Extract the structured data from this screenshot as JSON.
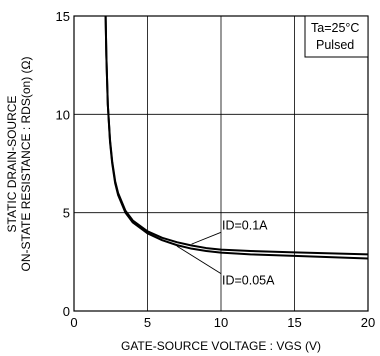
{
  "chart_data": {
    "type": "line",
    "title": "",
    "xlabel": "GATE-SOURCE  VOLTAGE : VGS (V)",
    "ylabel_line1": "STATIC  DRAIN-SOURCE",
    "ylabel_line2": "ON-STATE  RESISTANCE : RDS(on) (Ω)",
    "xlim": [
      0,
      20
    ],
    "ylim": [
      0,
      15
    ],
    "xticks": [
      0,
      5,
      10,
      15,
      20
    ],
    "yticks": [
      0,
      5,
      10,
      15
    ],
    "grid": true,
    "conditions": [
      "Ta=25°C",
      "Pulsed"
    ],
    "series": [
      {
        "name": "ID=0.1A",
        "x": [
          2.15,
          2.2,
          2.3,
          2.45,
          2.6,
          2.8,
          3.0,
          3.5,
          4.0,
          5.0,
          6.0,
          7.0,
          8.0,
          9.0,
          10.0,
          12.0,
          15.0,
          20.0
        ],
        "y": [
          15.0,
          13.0,
          10.5,
          8.7,
          7.6,
          6.6,
          6.0,
          5.1,
          4.6,
          4.05,
          3.72,
          3.5,
          3.33,
          3.2,
          3.12,
          3.05,
          2.98,
          2.88
        ]
      },
      {
        "name": "ID=0.05A",
        "x": [
          2.15,
          2.2,
          2.3,
          2.45,
          2.6,
          2.8,
          3.0,
          3.5,
          4.0,
          5.0,
          6.0,
          7.0,
          8.0,
          9.0,
          10.0,
          12.0,
          15.0,
          20.0
        ],
        "y": [
          15.0,
          13.0,
          10.5,
          8.6,
          7.5,
          6.5,
          5.9,
          5.0,
          4.5,
          3.95,
          3.6,
          3.35,
          3.17,
          3.05,
          2.97,
          2.88,
          2.8,
          2.67
        ]
      }
    ],
    "annotations": [
      {
        "text": "ID=0.1A",
        "x": 8.0,
        "y": 3.4,
        "label_x": 10.0,
        "label_y": 4.0
      },
      {
        "text": "ID=0.05A",
        "x": 7.0,
        "y": 3.3,
        "label_x": 10.0,
        "label_y": 1.9
      }
    ]
  }
}
